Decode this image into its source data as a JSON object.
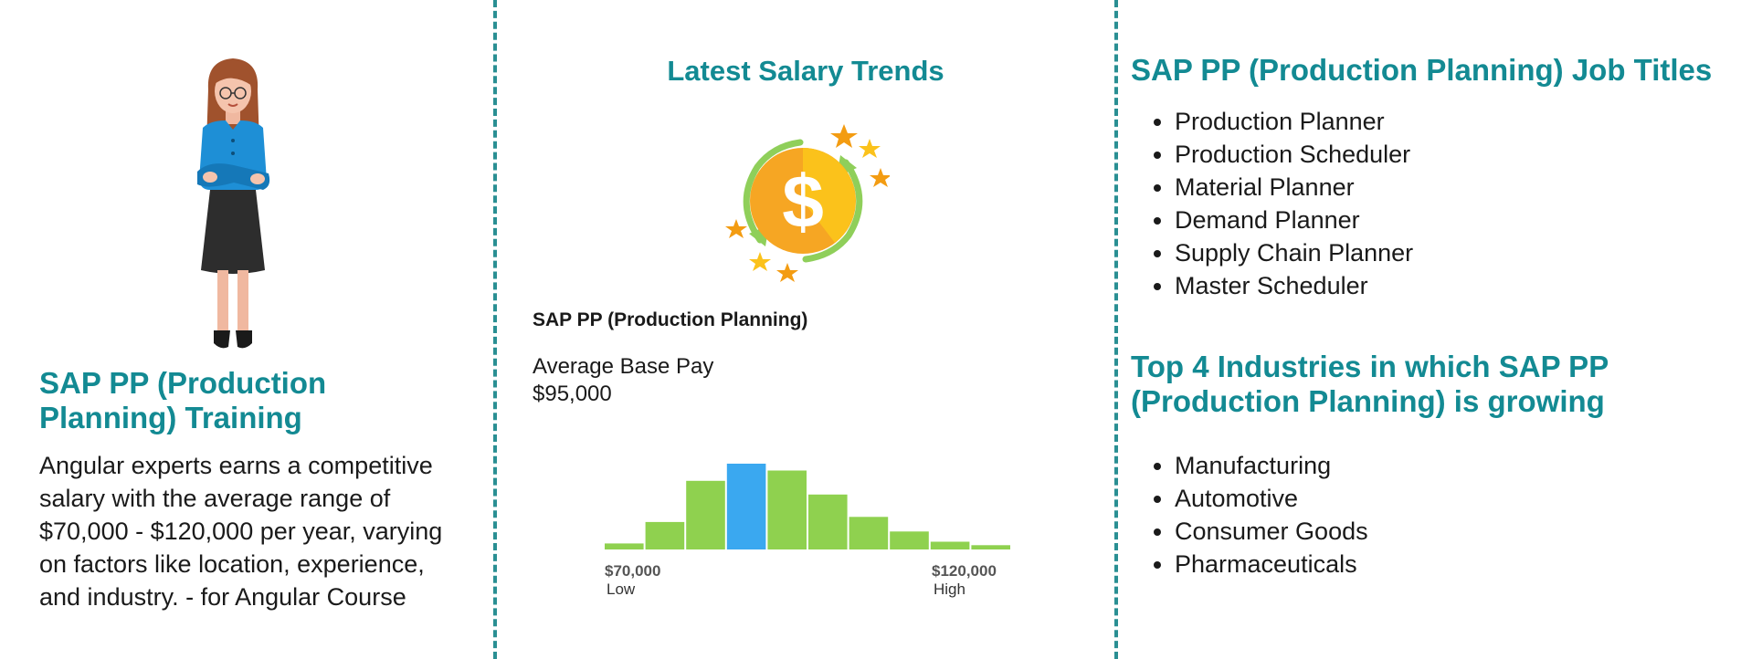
{
  "left": {
    "heading": "SAP PP (Production Planning) Training",
    "description": "Angular experts earns a competitive salary with the average range of $70,000 - $120,000 per year, varying on factors like location, experience, and industry. - for Angular Course",
    "illustration_icon": "woman-arms-crossed-illustration"
  },
  "middle": {
    "heading": "Latest Salary Trends",
    "icon": "dollar-coin-icon",
    "subheading": "SAP PP (Production Planning)",
    "pay_label": "Average Base Pay",
    "pay_value": "$95,000",
    "histogram": {
      "low_value": "$70,000",
      "low_label": "Low",
      "high_value": "$120,000",
      "high_label": "High",
      "bars": [
        0.07,
        0.32,
        0.8,
        1.0,
        0.92,
        0.64,
        0.38,
        0.21,
        0.09,
        0.05
      ],
      "highlight_index": 3,
      "bar_color": "#8fd14f",
      "highlight_color": "#3aa8f0"
    }
  },
  "right": {
    "job_titles_heading": "SAP PP (Production Planning) Job Titles",
    "job_titles": [
      "Production Planner",
      "Production Scheduler",
      "Material Planner",
      "Demand Planner",
      "Supply Chain Planner",
      "Master Scheduler"
    ],
    "industries_heading": "Top 4 Industries in which SAP PP (Production Planning) is growing",
    "industries": [
      "Manufacturing",
      "Automotive",
      "Consumer Goods",
      "Pharmaceuticals"
    ]
  },
  "colors": {
    "accent": "#138a93",
    "divider": "#2a8f93"
  }
}
